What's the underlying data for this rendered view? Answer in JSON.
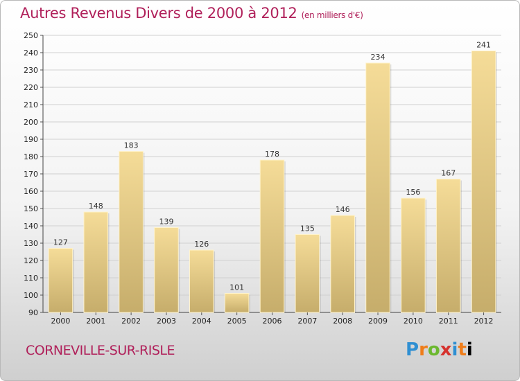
{
  "header": {
    "title": "Autres Revenus Divers de 2000 à 2012",
    "subtitle": "(en milliers d'€)"
  },
  "footer": {
    "location": "CORNEVILLE-SUR-RISLE",
    "logo_letters": [
      "P",
      "r",
      "o",
      "x",
      "i",
      "t",
      "i"
    ]
  },
  "colors": {
    "title": "#b0205a",
    "bar_light": "#f5dc98",
    "bar_dark": "#c6ad6b",
    "grid": "#d0d0d0"
  },
  "chart_data": {
    "type": "bar",
    "title": "Autres Revenus Divers de 2000 à 2012",
    "subtitle": "(en milliers d'€)",
    "xlabel": "",
    "ylabel": "",
    "categories": [
      "2000",
      "2001",
      "2002",
      "2003",
      "2004",
      "2005",
      "2006",
      "2007",
      "2008",
      "2009",
      "2010",
      "2011",
      "2012"
    ],
    "values": [
      127,
      148,
      183,
      139,
      126,
      101,
      178,
      135,
      146,
      234,
      156,
      167,
      241
    ],
    "ylim": [
      90,
      250
    ],
    "yticks": [
      90,
      100,
      110,
      120,
      130,
      140,
      150,
      160,
      170,
      180,
      190,
      200,
      210,
      220,
      230,
      240,
      250
    ],
    "grid": true,
    "legend": "none"
  }
}
